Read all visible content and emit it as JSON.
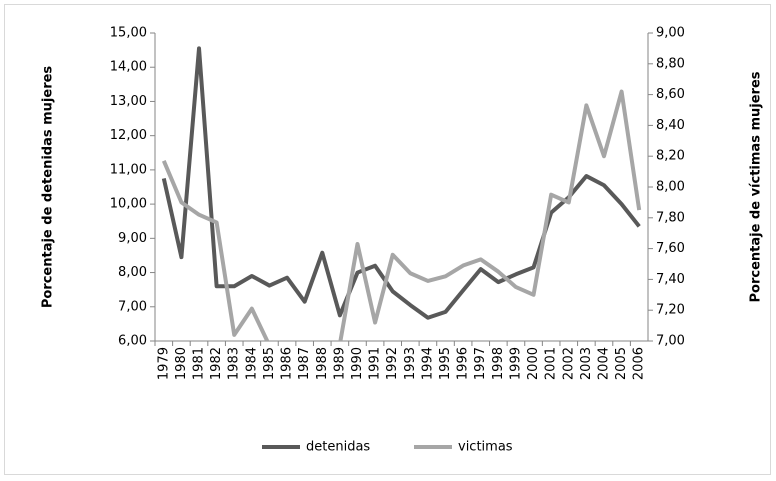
{
  "chart_data": {
    "type": "line",
    "y_label": "Porcentaje de detenidas mujeres",
    "y2_label": "Porcentaje de víctimas mujeres",
    "categories": [
      "1979",
      "1980",
      "1981",
      "1982",
      "1983",
      "1984",
      "1985",
      "1986",
      "1987",
      "1988",
      "1989",
      "1990",
      "1991",
      "1992",
      "1993",
      "1994",
      "1995",
      "1996",
      "1997",
      "1998",
      "1999",
      "2000",
      "2001",
      "2002",
      "2003",
      "2004",
      "2005",
      "2006"
    ],
    "series": [
      {
        "name": "detenidas",
        "color": "#595959",
        "values": [
          10.75,
          8.45,
          14.55,
          7.6,
          7.6,
          7.9,
          7.62,
          7.85,
          7.15,
          8.58,
          6.75,
          8.0,
          8.2,
          7.45,
          7.05,
          6.68,
          6.85,
          7.48,
          8.1,
          7.72,
          7.95,
          8.15,
          9.75,
          10.2,
          10.82,
          10.55,
          10.0,
          9.35
        ]
      },
      {
        "name": "victimas",
        "color": "#a6a6a6",
        "axis": "y2",
        "values": [
          8.17,
          7.9,
          7.82,
          7.77,
          7.04,
          7.21,
          6.97,
          6.9,
          6.85,
          6.9,
          6.98,
          7.63,
          7.12,
          7.56,
          7.44,
          7.39,
          7.42,
          7.49,
          7.53,
          7.45,
          7.35,
          7.3,
          7.95,
          7.9,
          8.53,
          8.2,
          8.62,
          7.85
        ]
      }
    ],
    "ylim": [
      6,
      15
    ],
    "yticks": [
      {
        "value": 6,
        "label": "6,00"
      },
      {
        "value": 7,
        "label": "7,00"
      },
      {
        "value": 8,
        "label": "8,00"
      },
      {
        "value": 9,
        "label": "9,00"
      },
      {
        "value": 10,
        "label": "10,00"
      },
      {
        "value": 11,
        "label": "11,00"
      },
      {
        "value": 12,
        "label": "12,00"
      },
      {
        "value": 13,
        "label": "13,00"
      },
      {
        "value": 14,
        "label": "14,00"
      },
      {
        "value": 15,
        "label": "15,00"
      }
    ],
    "y2lim": [
      7,
      9
    ],
    "y2ticks": [
      {
        "value": 7,
        "label": "7,00"
      },
      {
        "value": 7.2,
        "label": "7,20"
      },
      {
        "value": 7.4,
        "label": "7,40"
      },
      {
        "value": 7.6,
        "label": "7,60"
      },
      {
        "value": 7.8,
        "label": "7,80"
      },
      {
        "value": 8,
        "label": "8,00"
      },
      {
        "value": 8.2,
        "label": "8,20"
      },
      {
        "value": 8.4,
        "label": "8,40"
      },
      {
        "value": 8.6,
        "label": "8,60"
      },
      {
        "value": 8.8,
        "label": "8,80"
      },
      {
        "value": 9,
        "label": "9,00"
      }
    ],
    "legend": "bottom"
  }
}
